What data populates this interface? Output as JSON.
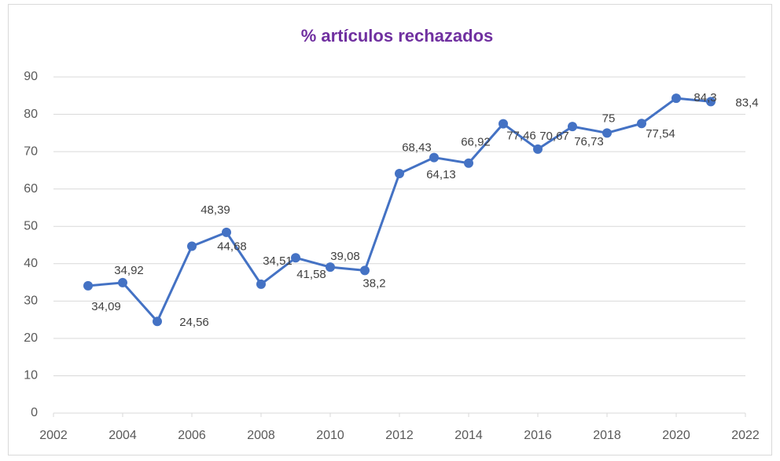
{
  "chart_data": {
    "type": "line",
    "title": "% artículos rechazados",
    "x": [
      2003,
      2004,
      2005,
      2006,
      2007,
      2008,
      2009,
      2010,
      2011,
      2012,
      2013,
      2014,
      2015,
      2016,
      2017,
      2018,
      2019,
      2020,
      2021
    ],
    "series": [
      {
        "name": "% artículos rechazados",
        "color": "#4472c4",
        "values": [
          34.09,
          34.92,
          24.56,
          44.68,
          48.39,
          34.51,
          41.58,
          39.08,
          38.2,
          64.13,
          68.43,
          66.92,
          77.46,
          70.67,
          76.73,
          75,
          77.54,
          84.3,
          83.4
        ],
        "value_labels": [
          "34,09",
          "34,92",
          "24,56",
          "44,68",
          "48,39",
          "34,51",
          "41,58",
          "39,08",
          "38,2",
          "64,13",
          "68,43",
          "66,92",
          "77,46",
          "70,67",
          "76,73",
          "75",
          "77,54",
          "84,3",
          "83,4"
        ]
      }
    ],
    "xlim": [
      2002,
      2022
    ],
    "xticks": [
      2002,
      2004,
      2006,
      2008,
      2010,
      2012,
      2014,
      2016,
      2018,
      2020,
      2022
    ],
    "ylim": [
      0,
      90
    ],
    "yticks": [
      0,
      10,
      20,
      30,
      40,
      50,
      60,
      70,
      80,
      90
    ],
    "grid": true,
    "title_color": "#7030a0"
  }
}
